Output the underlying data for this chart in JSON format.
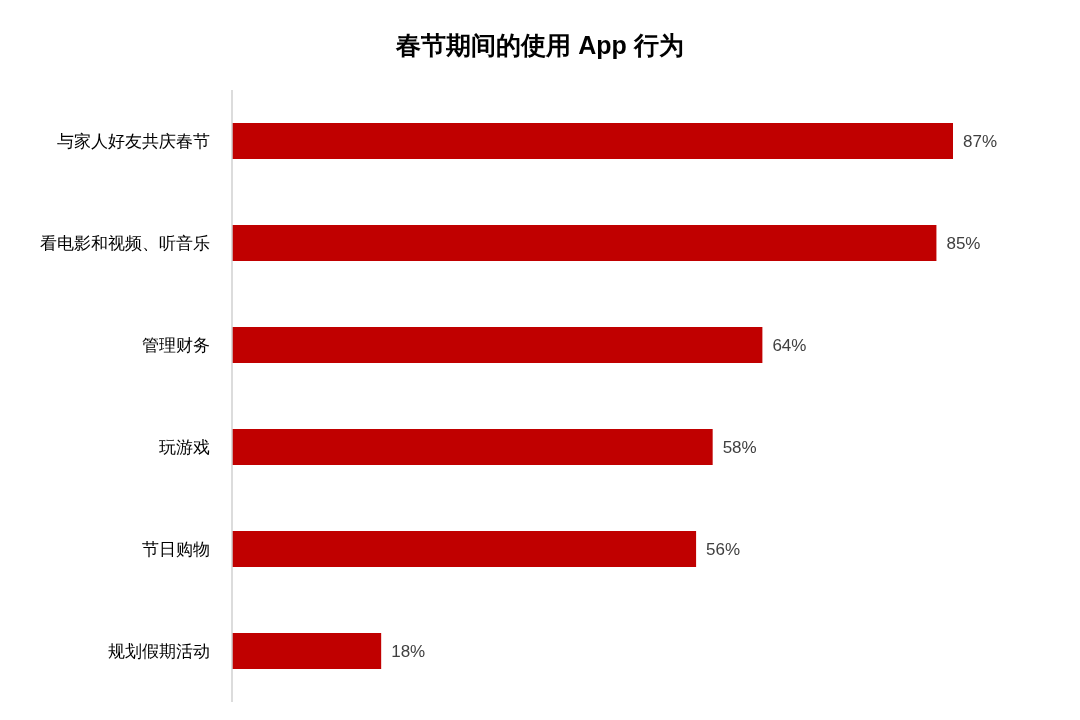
{
  "chart_data": {
    "type": "bar",
    "orientation": "horizontal",
    "title": "春节期间的使用 App 行为",
    "categories": [
      "与家人好友共庆春节",
      "看电影和视频、听音乐",
      "管理财务",
      "玩游戏",
      "节日购物",
      "规划假期活动"
    ],
    "values": [
      87,
      85,
      64,
      58,
      56,
      18
    ],
    "value_labels": [
      "87%",
      "85%",
      "64%",
      "58%",
      "56%",
      "18%"
    ],
    "color": "#c00000"
  }
}
